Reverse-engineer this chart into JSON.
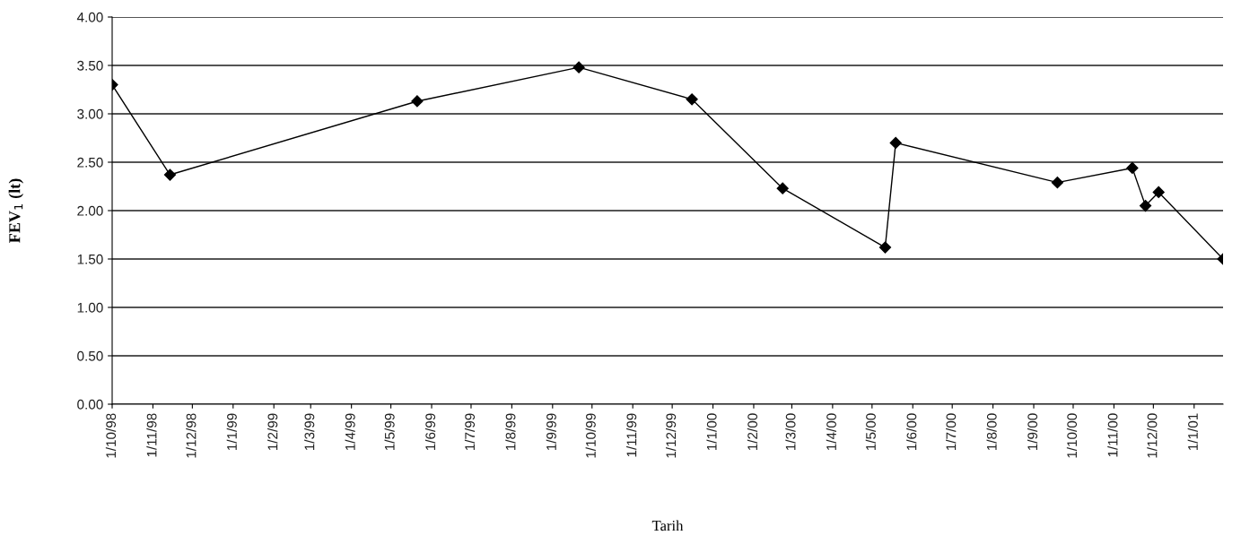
{
  "chart_data": {
    "type": "line",
    "xlabel": "Tarih",
    "ylabel": "FEV$_{1}$ (lt)",
    "x": [
      "1998-10-01",
      "1998-11-14",
      "1999-05-21",
      "1999-09-21",
      "1999-12-16",
      "2000-02-23",
      "2000-05-11",
      "2000-05-19",
      "2000-09-19",
      "2000-11-15",
      "2000-11-25",
      "2000-12-05",
      "2001-01-23"
    ],
    "series": [
      {
        "color": "#000000",
        "values": [
          3.3,
          2.37,
          3.13,
          3.48,
          3.15,
          2.23,
          1.62,
          2.7,
          2.29,
          2.44,
          2.05,
          2.19,
          1.5
        ]
      }
    ],
    "xlim": [
      "1998-10-01",
      "2001-01-23"
    ],
    "xticks": [
      {
        "value": "1998-10-01",
        "label": "1/10/98"
      },
      {
        "value": "1998-11-01",
        "label": "1/11/98"
      },
      {
        "value": "1998-12-01",
        "label": "1/12/98"
      },
      {
        "value": "1999-01-01",
        "label": "1/1/99"
      },
      {
        "value": "1999-02-01",
        "label": "1/2/99"
      },
      {
        "value": "1999-03-01",
        "label": "1/3/99"
      },
      {
        "value": "1999-04-01",
        "label": "1/4/99"
      },
      {
        "value": "1999-05-01",
        "label": "1/5/99"
      },
      {
        "value": "1999-06-01",
        "label": "1/6/99"
      },
      {
        "value": "1999-07-01",
        "label": "1/7/99"
      },
      {
        "value": "1999-08-01",
        "label": "1/8/99"
      },
      {
        "value": "1999-09-01",
        "label": "1/9/99"
      },
      {
        "value": "1999-10-01",
        "label": "1/10/99"
      },
      {
        "value": "1999-11-01",
        "label": "1/11/99"
      },
      {
        "value": "1999-12-01",
        "label": "1/12/99"
      },
      {
        "value": "2000-01-01",
        "label": "1/1/00"
      },
      {
        "value": "2000-02-01",
        "label": "1/2/00"
      },
      {
        "value": "2000-03-01",
        "label": "1/3/00"
      },
      {
        "value": "2000-04-01",
        "label": "1/4/00"
      },
      {
        "value": "2000-05-01",
        "label": "1/5/00"
      },
      {
        "value": "2000-06-01",
        "label": "1/6/00"
      },
      {
        "value": "2000-07-01",
        "label": "1/7/00"
      },
      {
        "value": "2000-08-01",
        "label": "1/8/00"
      },
      {
        "value": "2000-09-01",
        "label": "1/9/00"
      },
      {
        "value": "2000-10-01",
        "label": "1/10/00"
      },
      {
        "value": "2000-11-01",
        "label": "1/11/00"
      },
      {
        "value": "2000-12-01",
        "label": "1/12/00"
      },
      {
        "value": "2001-01-01",
        "label": "1/1/01"
      }
    ],
    "ylim": [
      0,
      4
    ],
    "yticks": [
      {
        "value": 0,
        "label": "0.00"
      },
      {
        "value": 0.5,
        "label": "0.50"
      },
      {
        "value": 1,
        "label": "1.00"
      },
      {
        "value": 1.5,
        "label": "1.50"
      },
      {
        "value": 2,
        "label": "2.00"
      },
      {
        "value": 2.5,
        "label": "2.50"
      },
      {
        "value": 3,
        "label": "3.00"
      },
      {
        "value": 3.5,
        "label": "3.50"
      },
      {
        "value": 4,
        "label": "4.00"
      }
    ],
    "grid": "y",
    "marker": "diamond",
    "line_style": "solid"
  }
}
